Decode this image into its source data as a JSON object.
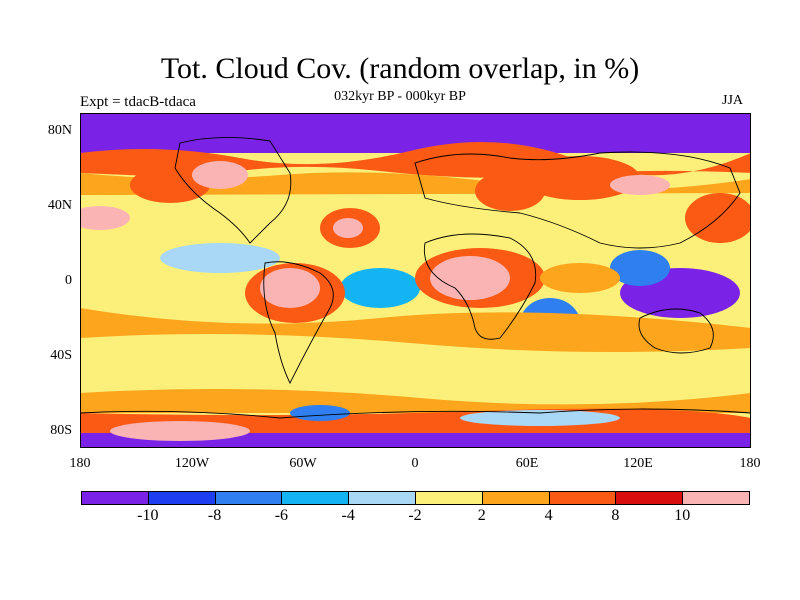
{
  "title": "Tot. Cloud Cov. (random overlap, in %)",
  "subtitle": "032kyr BP - 000kyr BP",
  "left_label": "Expt = tdacB-tdaca",
  "season": "JJA",
  "map": {
    "lat_labels": [
      "80N",
      "40N",
      "0",
      "40S",
      "80S"
    ],
    "lon_labels": [
      "180",
      "120W",
      "60W",
      "0",
      "60E",
      "120E",
      "180"
    ],
    "colorbar": {
      "colors": [
        "#7a22e6",
        "#1e3ff0",
        "#2f7ff0",
        "#14b4f2",
        "#a8d8f5",
        "#fdf07a",
        "#fda51c",
        "#fb5a14",
        "#d80e0e",
        "#fbb4b4"
      ],
      "labels": [
        "-10",
        "-8",
        "-6",
        "-4",
        "-2",
        "2",
        "4",
        "8",
        "10"
      ]
    }
  }
}
